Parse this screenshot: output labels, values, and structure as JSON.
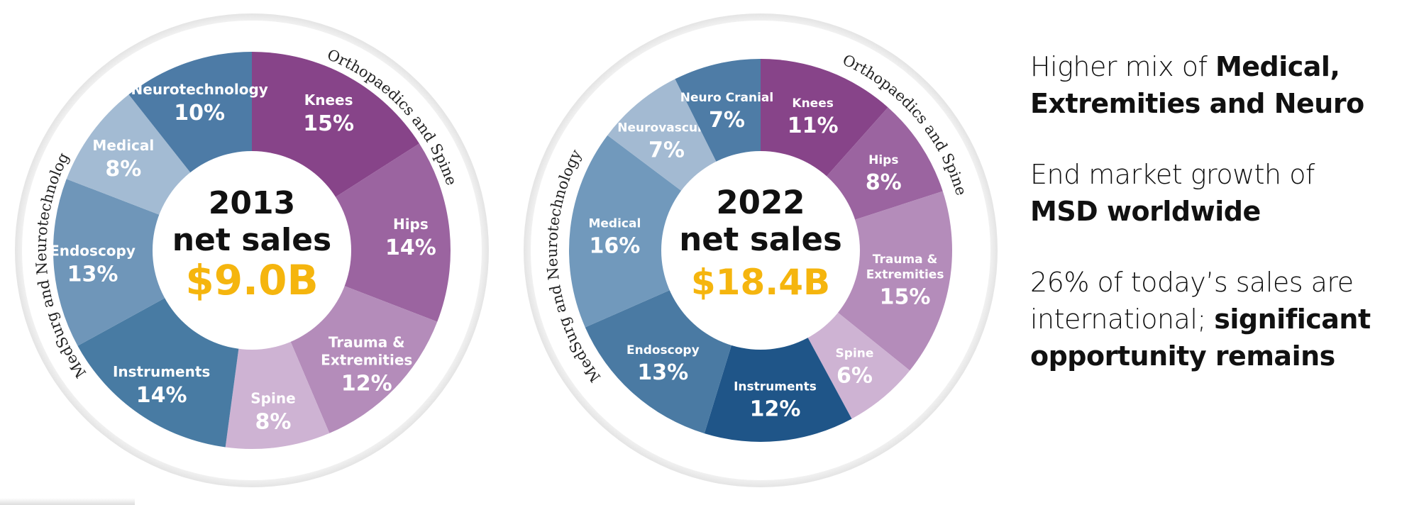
{
  "chart_data": [
    {
      "type": "pie",
      "center": {
        "year": "2013",
        "subtitle": "net sales",
        "value": "$9.0B"
      },
      "groups": [
        "Orthopaedics and Spine",
        "MedSurg and Neurotechnology"
      ],
      "slices": [
        {
          "name": "Knees",
          "value": 15,
          "label": "15%",
          "color": "#874489",
          "group": "Orthopaedics and Spine"
        },
        {
          "name": "Hips",
          "value": 14,
          "label": "14%",
          "color": "#9b64a0",
          "group": "Orthopaedics and Spine"
        },
        {
          "name": "Trauma & Extremities",
          "value": 12,
          "label": "12%",
          "color": "#b48cba",
          "group": "Orthopaedics and Spine"
        },
        {
          "name": "Spine",
          "value": 8,
          "label": "8%",
          "color": "#ceb3d3",
          "group": "Orthopaedics and Spine"
        },
        {
          "name": "Instruments",
          "value": 14,
          "label": "14%",
          "color": "#487ba3",
          "group": "MedSurg and Neurotechnology"
        },
        {
          "name": "Endoscopy",
          "value": 13,
          "label": "13%",
          "color": "#6f96b9",
          "group": "MedSurg and Neurotechnology"
        },
        {
          "name": "Medical",
          "value": 8,
          "label": "8%",
          "color": "#a3bbd3",
          "group": "MedSurg and Neurotechnology"
        },
        {
          "name": "Neurotechnology",
          "value": 10,
          "label": "10%",
          "color": "#4d7ba6",
          "group": "MedSurg and Neurotechnology"
        }
      ]
    },
    {
      "type": "pie",
      "center": {
        "year": "2022",
        "subtitle": "net sales",
        "value": "$18.4B"
      },
      "groups": [
        "Orthopaedics and Spine",
        "MedSurg and Neurotechnology"
      ],
      "slices": [
        {
          "name": "Knees",
          "value": 11,
          "label": "11%",
          "color": "#874489",
          "group": "Orthopaedics and Spine"
        },
        {
          "name": "Hips",
          "value": 8,
          "label": "8%",
          "color": "#9b64a0",
          "group": "Orthopaedics and Spine"
        },
        {
          "name": "Trauma & Extremities",
          "value": 15,
          "label": "15%",
          "color": "#b48cba",
          "group": "Orthopaedics and Spine"
        },
        {
          "name": "Spine",
          "value": 6,
          "label": "6%",
          "color": "#ceb3d3",
          "group": "Orthopaedics and Spine"
        },
        {
          "name": "Instruments",
          "value": 12,
          "label": "12%",
          "color": "#1f5588",
          "group": "MedSurg and Neurotechnology"
        },
        {
          "name": "Endoscopy",
          "value": 13,
          "label": "13%",
          "color": "#4a7aa3",
          "group": "MedSurg and Neurotechnology"
        },
        {
          "name": "Medical",
          "value": 16,
          "label": "16%",
          "color": "#7199bc",
          "group": "MedSurg and Neurotechnology"
        },
        {
          "name": "Neurovascular",
          "value": 7,
          "label": "7%",
          "color": "#a3bad2",
          "group": "MedSurg and Neurotechnology"
        },
        {
          "name": "Neuro Cranial",
          "value": 7,
          "label": "7%",
          "color": "#4e7ca6",
          "group": "MedSurg and Neurotechnology"
        }
      ]
    }
  ],
  "takeaways": [
    {
      "normal": "Higher mix of ",
      "bold": "Medical, Extremities and Neuro"
    },
    {
      "normal": "End market growth of ",
      "bold": "MSD worldwide"
    },
    {
      "normal": "26% of today’s sales are international; ",
      "bold": "significant opportunity remains"
    }
  ]
}
